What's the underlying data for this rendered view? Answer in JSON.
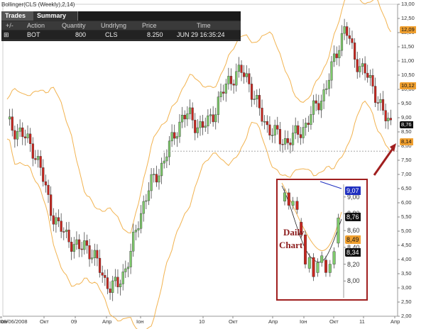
{
  "indicator_title": "Bollinger(CLS (Weekly),2,14)",
  "trades_panel": {
    "tabs": [
      {
        "label": "Trades"
      },
      {
        "label": "Summary"
      }
    ],
    "columns": [
      "+/-",
      "Action",
      "Quantity",
      "Undrlyng",
      "Price",
      "Time"
    ],
    "row": {
      "expand": "⊞",
      "action": "BOT",
      "quantity": "800",
      "underlying": "CLS",
      "price": "8.250",
      "time": "JUN 29 16:35:24"
    }
  },
  "inset": {
    "label_line1": "Daily",
    "label_line2": "Chart"
  },
  "chart_data": [
    {
      "type": "candlestick",
      "title": "Bollinger(CLS (Weekly),2,14)",
      "ylim": [
        2.0,
        13.0
      ],
      "y_ticks": [
        "13,00",
        "12,50",
        "12,00",
        "11,50",
        "11,00",
        "10,50",
        "10,00",
        "9,50",
        "9,00",
        "8,50",
        "8,00",
        "7,50",
        "7,00",
        "6,50",
        "6,00",
        "5,50",
        "5,00",
        "4,50",
        "4,00",
        "3,50",
        "3,00",
        "2,50",
        "2,00"
      ],
      "x_labels": [
        "06/06/2008",
        "Окт",
        "09",
        "Апр",
        "Іон",
        "10",
        "Окт",
        "Апр",
        "Іон",
        "Окт",
        "11",
        "Апр",
        "Іон"
      ],
      "price_tags": [
        {
          "value": 12.09,
          "label": "12,09",
          "color": "#f0a030"
        },
        {
          "value": 10.12,
          "label": "10,12",
          "color": "#f0a030"
        },
        {
          "value": 8.76,
          "label": "8,76",
          "color": "#111111"
        },
        {
          "value": 8.14,
          "label": "8,14",
          "color": "#f0a030"
        }
      ],
      "dashed_level": 7.82,
      "close_path": [
        8.8,
        8.6,
        8.5,
        8.2,
        7.9,
        7.3,
        6.4,
        5.6,
        5.1,
        4.9,
        4.6,
        4.3,
        4.6,
        4.2,
        3.8,
        3.3,
        3.0,
        3.1,
        3.6,
        4.2,
        5.2,
        6.0,
        6.6,
        7.0,
        7.4,
        8.0,
        8.6,
        9.0,
        9.1,
        8.8,
        8.6,
        8.9,
        9.3,
        9.8,
        10.3,
        10.5,
        10.6,
        10.4,
        9.7,
        9.1,
        8.7,
        8.5,
        8.2,
        8.2,
        8.3,
        8.5,
        8.8,
        9.2,
        9.6,
        10.0,
        10.8,
        11.6,
        12.2,
        11.4,
        10.9,
        10.6,
        10.2,
        9.7,
        9.0,
        8.8
      ]
    },
    {
      "type": "candlestick",
      "title": "Daily",
      "ylim": [
        7.8,
        9.15
      ],
      "y_ticks": [
        "9,00",
        "8,80",
        "8,60",
        "8,40",
        "8,20",
        "8,00"
      ],
      "price_tags": [
        {
          "value": 9.07,
          "label": "9,07",
          "color": "#2030c0"
        },
        {
          "value": 8.76,
          "label": "8,76",
          "color": "#111111"
        },
        {
          "value": 8.49,
          "label": "8,49",
          "color": "#f0a030"
        },
        {
          "value": 8.34,
          "label": "8,34",
          "color": "#111111"
        }
      ]
    }
  ]
}
